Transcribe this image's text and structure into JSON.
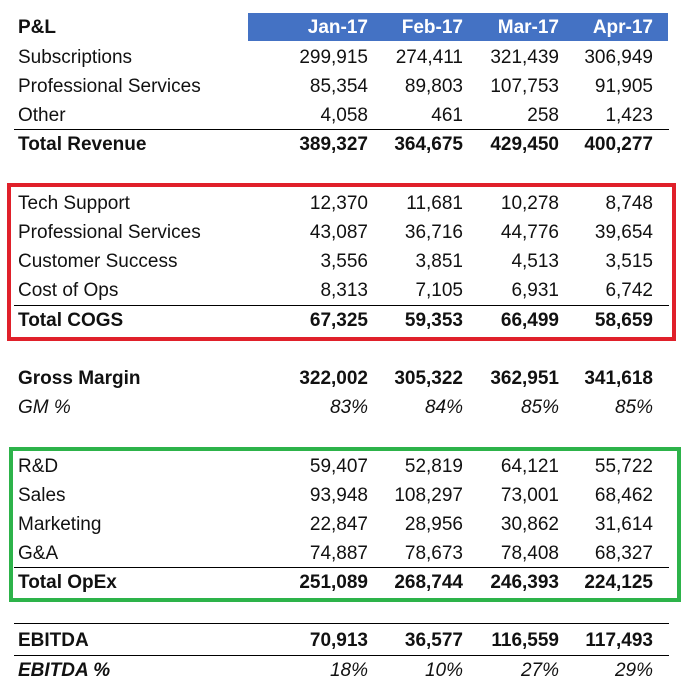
{
  "header": {
    "title": "P&L",
    "months": [
      "Jan-17",
      "Feb-17",
      "Mar-17",
      "Apr-17"
    ]
  },
  "revenue": {
    "rows": [
      {
        "label": "Subscriptions",
        "values": [
          "299,915",
          "274,411",
          "321,439",
          "306,949"
        ]
      },
      {
        "label": "Professional Services",
        "values": [
          "85,354",
          "89,803",
          "107,753",
          "91,905"
        ]
      },
      {
        "label": "Other",
        "values": [
          "4,058",
          "461",
          "258",
          "1,423"
        ]
      }
    ],
    "total": {
      "label": "Total Revenue",
      "values": [
        "389,327",
        "364,675",
        "429,450",
        "400,277"
      ]
    }
  },
  "cogs": {
    "rows": [
      {
        "label": "Tech Support",
        "values": [
          "12,370",
          "11,681",
          "10,278",
          "8,748"
        ]
      },
      {
        "label": "Professional Services",
        "values": [
          "43,087",
          "36,716",
          "44,776",
          "39,654"
        ]
      },
      {
        "label": "Customer Success",
        "values": [
          "3,556",
          "3,851",
          "4,513",
          "3,515"
        ]
      },
      {
        "label": "Cost of Ops",
        "values": [
          "8,313",
          "7,105",
          "6,931",
          "6,742"
        ]
      }
    ],
    "total": {
      "label": "Total COGS",
      "values": [
        "67,325",
        "59,353",
        "66,499",
        "58,659"
      ]
    }
  },
  "gross_margin": {
    "label": "Gross Margin",
    "values": [
      "322,002",
      "305,322",
      "362,951",
      "341,618"
    ],
    "pct_label": "GM %",
    "pct_values": [
      "83%",
      "84%",
      "85%",
      "85%"
    ]
  },
  "opex": {
    "rows": [
      {
        "label": "R&D",
        "values": [
          "59,407",
          "52,819",
          "64,121",
          "55,722"
        ]
      },
      {
        "label": "Sales",
        "values": [
          "93,948",
          "108,297",
          "73,001",
          "68,462"
        ]
      },
      {
        "label": "Marketing",
        "values": [
          "22,847",
          "28,956",
          "30,862",
          "31,614"
        ]
      },
      {
        "label": "G&A",
        "values": [
          "74,887",
          "78,673",
          "78,408",
          "68,327"
        ]
      }
    ],
    "total": {
      "label": "Total OpEx",
      "values": [
        "251,089",
        "268,744",
        "246,393",
        "224,125"
      ]
    }
  },
  "ebitda": {
    "label": "EBITDA",
    "values": [
      "70,913",
      "36,577",
      "116,559",
      "117,493"
    ],
    "pct_label": "EBITDA %",
    "pct_values": [
      "18%",
      "10%",
      "27%",
      "29%"
    ]
  },
  "colors": {
    "header_fill": "#4472c4",
    "cogs_box": "#e0202a",
    "opex_box": "#2db34a"
  }
}
